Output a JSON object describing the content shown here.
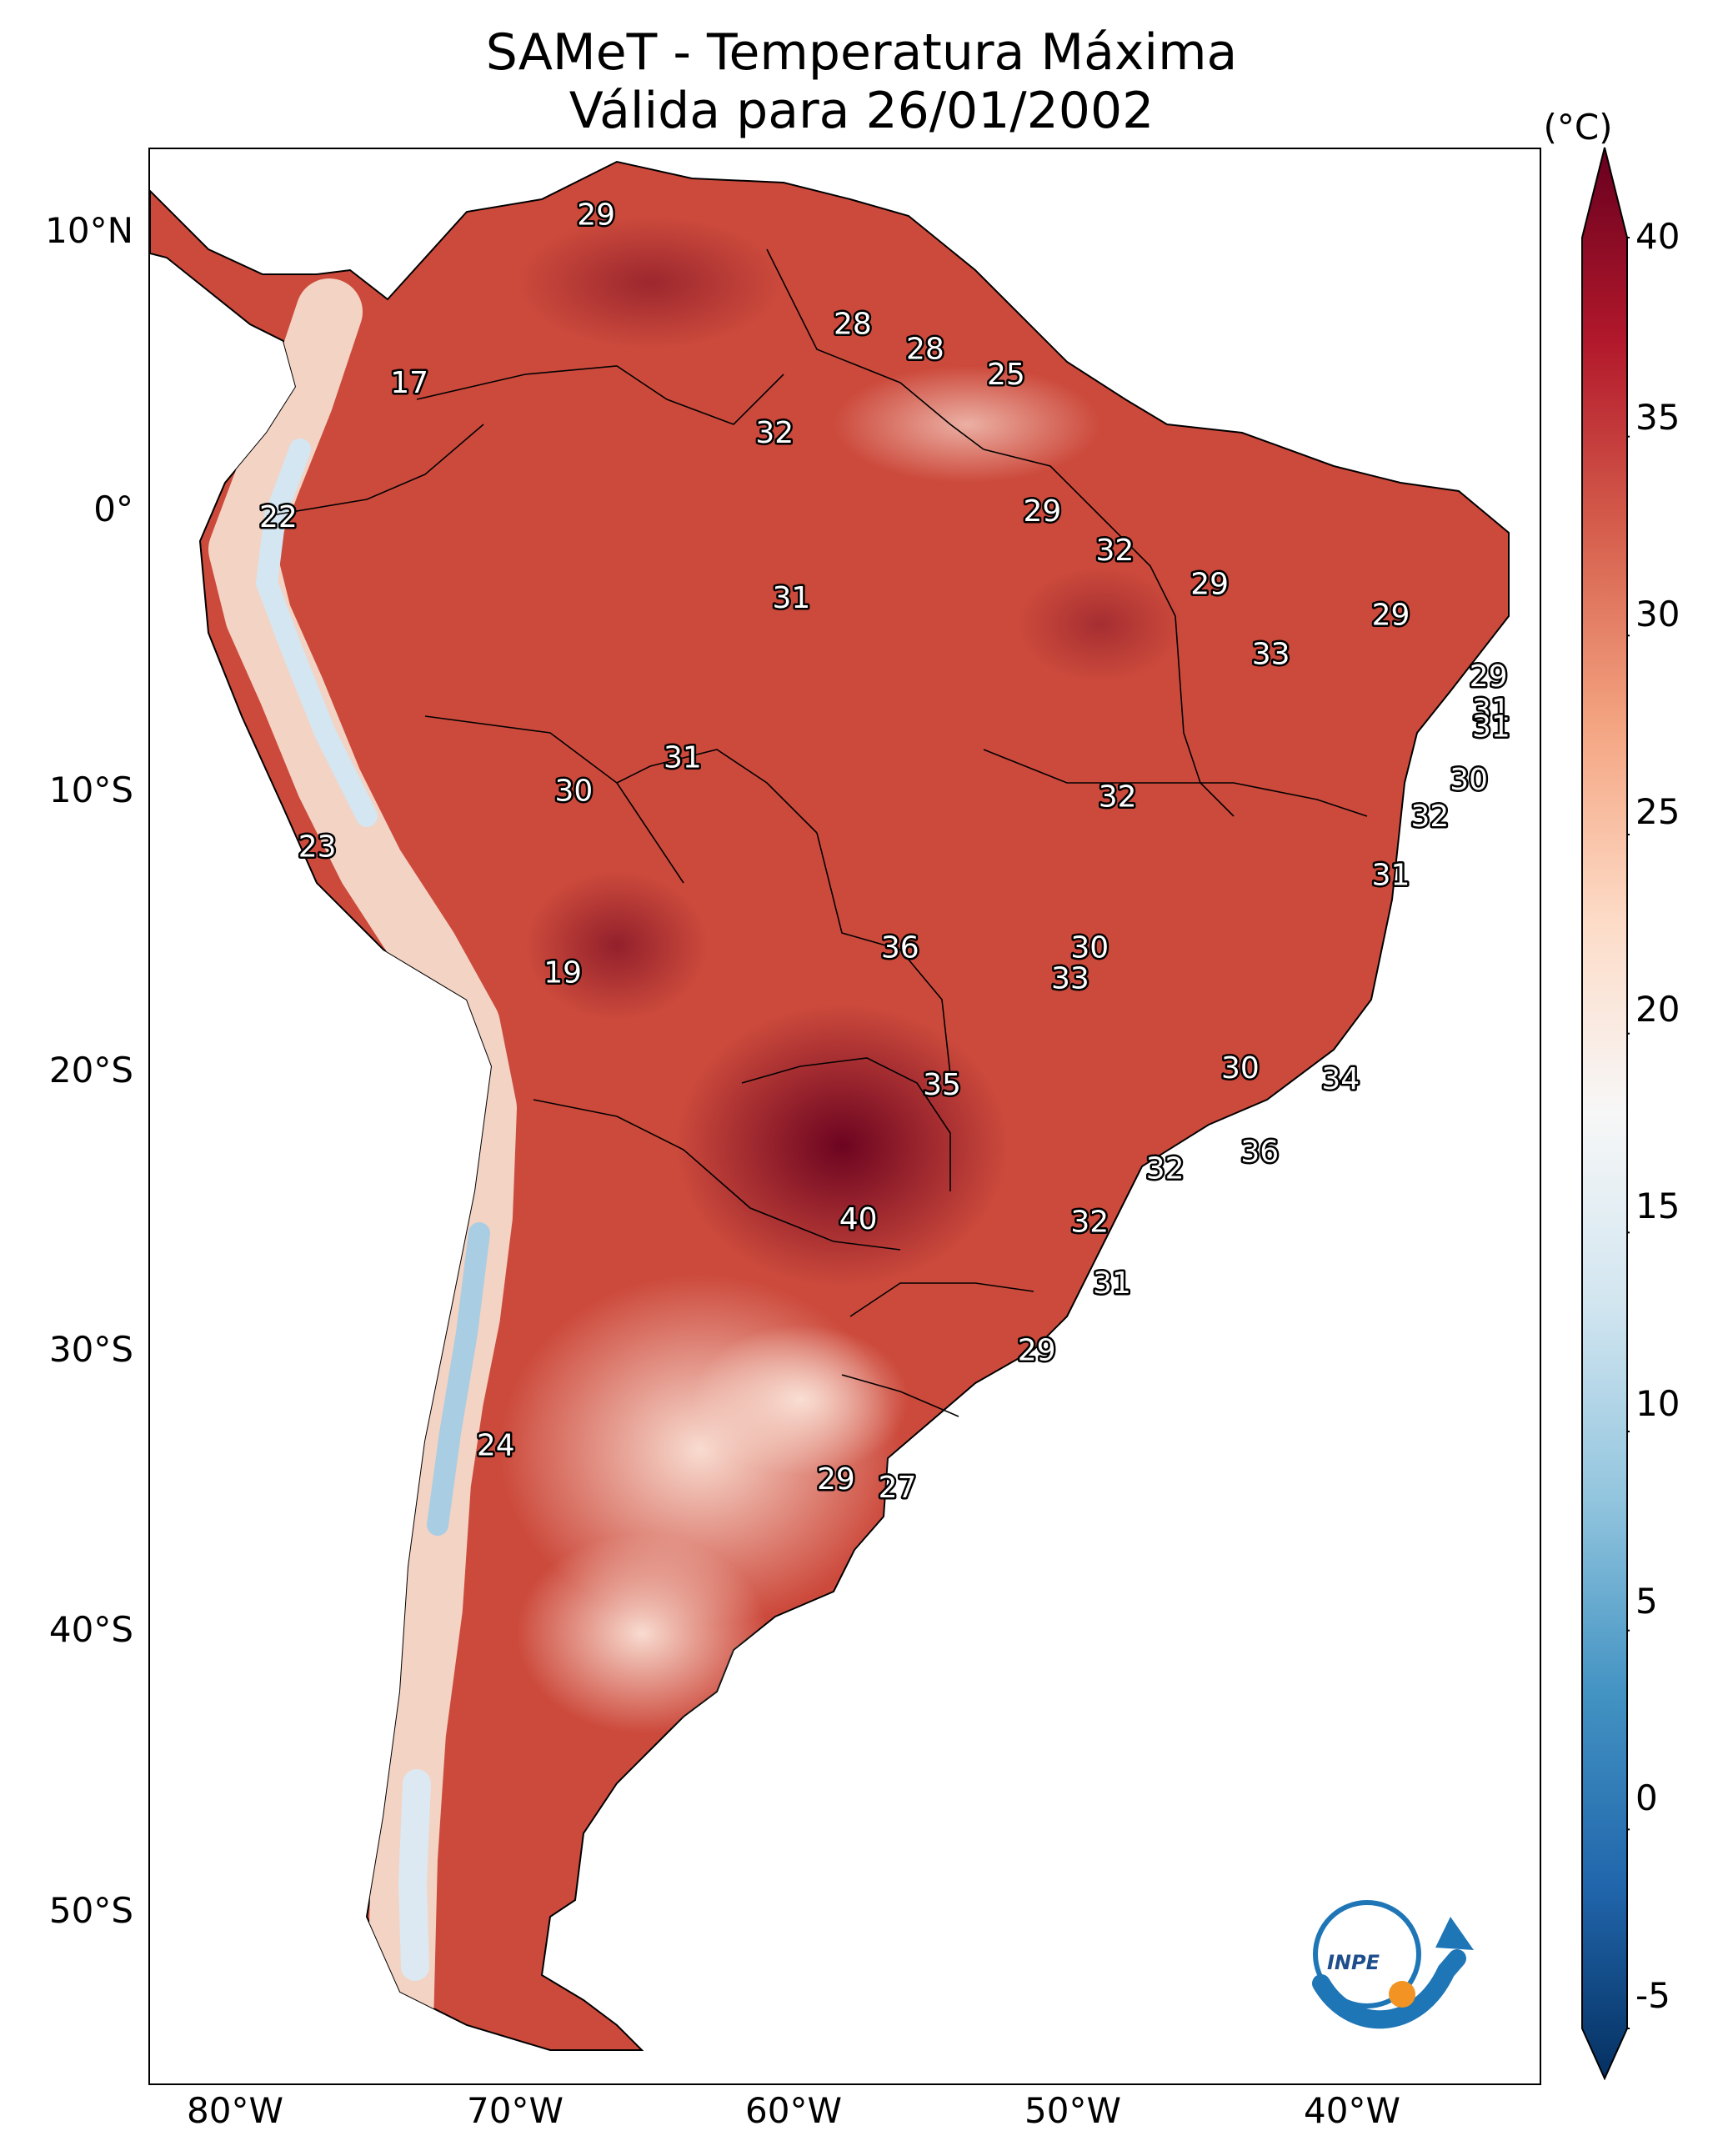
{
  "title": {
    "line1": "SAMeT - Temperatura Máxima",
    "line2": "Válida para 26/01/2002"
  },
  "map": {
    "lat_labels": [
      "10°N",
      "0°",
      "10°S",
      "20°S",
      "30°S",
      "40°S",
      "50°S"
    ],
    "lon_labels": [
      "80°W",
      "70°W",
      "60°W",
      "50°W",
      "40°W"
    ],
    "stations": [
      {
        "value": "29",
        "lon": -67.0,
        "lat": 10.6
      },
      {
        "value": "17",
        "lon": -73.7,
        "lat": 4.6
      },
      {
        "value": "28",
        "lon": -57.8,
        "lat": 6.7
      },
      {
        "value": "28",
        "lon": -55.2,
        "lat": 5.8
      },
      {
        "value": "25",
        "lon": -52.3,
        "lat": 4.9
      },
      {
        "value": "32",
        "lon": -60.6,
        "lat": 2.8
      },
      {
        "value": "22",
        "lon": -78.4,
        "lat": -0.2
      },
      {
        "value": "29",
        "lon": -51.0,
        "lat": 0.0
      },
      {
        "value": "32",
        "lon": -48.4,
        "lat": -1.4
      },
      {
        "value": "29",
        "lon": -45.0,
        "lat": -2.6
      },
      {
        "value": "31",
        "lon": -60.0,
        "lat": -3.1
      },
      {
        "value": "29",
        "lon": -38.5,
        "lat": -3.7
      },
      {
        "value": "33",
        "lon": -42.8,
        "lat": -5.1
      },
      {
        "value": "29",
        "lon": -35.0,
        "lat": -5.9
      },
      {
        "value": "31",
        "lon": -34.9,
        "lat": -7.1
      },
      {
        "value": "31",
        "lon": -34.9,
        "lat": -7.7
      },
      {
        "value": "31",
        "lon": -63.9,
        "lat": -8.8
      },
      {
        "value": "30",
        "lon": -67.8,
        "lat": -10.0
      },
      {
        "value": "30",
        "lon": -35.7,
        "lat": -9.6
      },
      {
        "value": "32",
        "lon": -48.3,
        "lat": -10.2
      },
      {
        "value": "32",
        "lon": -37.1,
        "lat": -10.9
      },
      {
        "value": "23",
        "lon": -77.0,
        "lat": -12.0
      },
      {
        "value": "31",
        "lon": -38.5,
        "lat": -13.0
      },
      {
        "value": "36",
        "lon": -56.1,
        "lat": -15.6
      },
      {
        "value": "30",
        "lon": -49.3,
        "lat": -15.6
      },
      {
        "value": "33",
        "lon": -50.0,
        "lat": -16.7
      },
      {
        "value": "19",
        "lon": -68.2,
        "lat": -16.5
      },
      {
        "value": "30",
        "lon": -43.9,
        "lat": -19.9
      },
      {
        "value": "34",
        "lon": -40.3,
        "lat": -20.3
      },
      {
        "value": "35",
        "lon": -54.6,
        "lat": -20.5
      },
      {
        "value": "36",
        "lon": -43.2,
        "lat": -22.9
      },
      {
        "value": "32",
        "lon": -46.6,
        "lat": -23.5
      },
      {
        "value": "40",
        "lon": -57.6,
        "lat": -25.3
      },
      {
        "value": "32",
        "lon": -49.3,
        "lat": -25.4
      },
      {
        "value": "31",
        "lon": -48.5,
        "lat": -27.6
      },
      {
        "value": "29",
        "lon": -51.2,
        "lat": -30.0
      },
      {
        "value": "24",
        "lon": -70.6,
        "lat": -33.4
      },
      {
        "value": "29",
        "lon": -58.4,
        "lat": -34.6
      },
      {
        "value": "27",
        "lon": -56.2,
        "lat": -34.9
      }
    ]
  },
  "colorbar": {
    "unit": "(°C)",
    "ticks": [
      "40",
      "35",
      "30",
      "25",
      "20",
      "15",
      "10",
      "5",
      "0",
      "-5"
    ],
    "range": [
      -5,
      40
    ],
    "colors": [
      "#053061",
      "#2166ac",
      "#4393c3",
      "#92c5de",
      "#d1e5f0",
      "#f7f7f7",
      "#fddbc7",
      "#f4a582",
      "#d6604d",
      "#b2182b",
      "#67001f"
    ]
  },
  "logo": {
    "text": "INPE"
  }
}
